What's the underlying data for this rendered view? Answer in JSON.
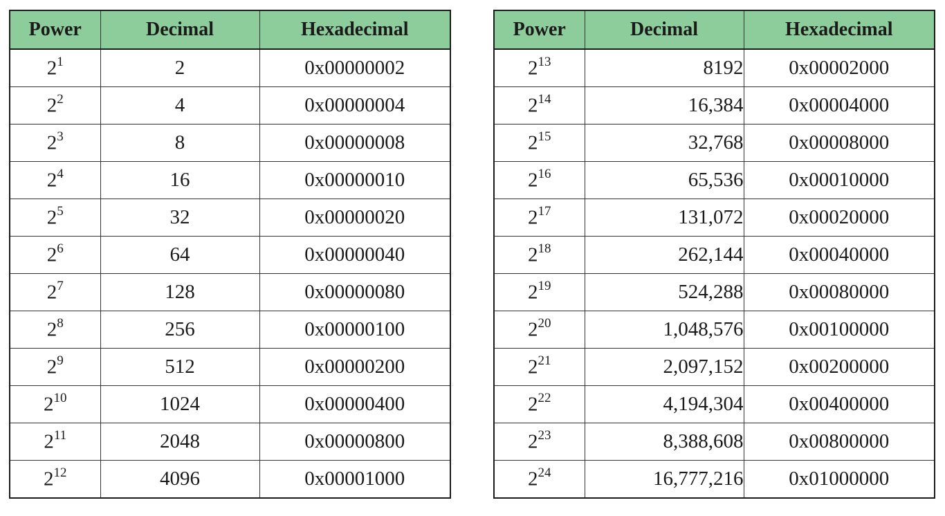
{
  "headers": {
    "power": "Power",
    "decimal": "Decimal",
    "hexadecimal": "Hexadecimal"
  },
  "left_rows": [
    {
      "base": "2",
      "exp": "1",
      "decimal": "2",
      "hex": "0x00000002"
    },
    {
      "base": "2",
      "exp": "2",
      "decimal": "4",
      "hex": "0x00000004"
    },
    {
      "base": "2",
      "exp": "3",
      "decimal": "8",
      "hex": "0x00000008"
    },
    {
      "base": "2",
      "exp": "4",
      "decimal": "16",
      "hex": "0x00000010"
    },
    {
      "base": "2",
      "exp": "5",
      "decimal": "32",
      "hex": "0x00000020"
    },
    {
      "base": "2",
      "exp": "6",
      "decimal": "64",
      "hex": "0x00000040"
    },
    {
      "base": "2",
      "exp": "7",
      "decimal": "128",
      "hex": "0x00000080"
    },
    {
      "base": "2",
      "exp": "8",
      "decimal": "256",
      "hex": "0x00000100"
    },
    {
      "base": "2",
      "exp": "9",
      "decimal": "512",
      "hex": "0x00000200"
    },
    {
      "base": "2",
      "exp": "10",
      "decimal": "1024",
      "hex": "0x00000400"
    },
    {
      "base": "2",
      "exp": "11",
      "decimal": "2048",
      "hex": "0x00000800"
    },
    {
      "base": "2",
      "exp": "12",
      "decimal": "4096",
      "hex": "0x00001000"
    }
  ],
  "right_rows": [
    {
      "base": "2",
      "exp": "13",
      "decimal": "8192",
      "hex": "0x00002000"
    },
    {
      "base": "2",
      "exp": "14",
      "decimal": "16,384",
      "hex": "0x00004000"
    },
    {
      "base": "2",
      "exp": "15",
      "decimal": "32,768",
      "hex": "0x00008000"
    },
    {
      "base": "2",
      "exp": "16",
      "decimal": "65,536",
      "hex": "0x00010000"
    },
    {
      "base": "2",
      "exp": "17",
      "decimal": "131,072",
      "hex": "0x00020000"
    },
    {
      "base": "2",
      "exp": "18",
      "decimal": "262,144",
      "hex": "0x00040000"
    },
    {
      "base": "2",
      "exp": "19",
      "decimal": "524,288",
      "hex": "0x00080000"
    },
    {
      "base": "2",
      "exp": "20",
      "decimal": "1,048,576",
      "hex": "0x00100000"
    },
    {
      "base": "2",
      "exp": "21",
      "decimal": "2,097,152",
      "hex": "0x00200000"
    },
    {
      "base": "2",
      "exp": "22",
      "decimal": "4,194,304",
      "hex": "0x00400000"
    },
    {
      "base": "2",
      "exp": "23",
      "decimal": "8,388,608",
      "hex": "0x00800000"
    },
    {
      "base": "2",
      "exp": "24",
      "decimal": "16,777,216",
      "hex": "0x01000000"
    }
  ],
  "colors": {
    "header_bg": "#8dcd9b",
    "border": "#1a1a1a"
  }
}
